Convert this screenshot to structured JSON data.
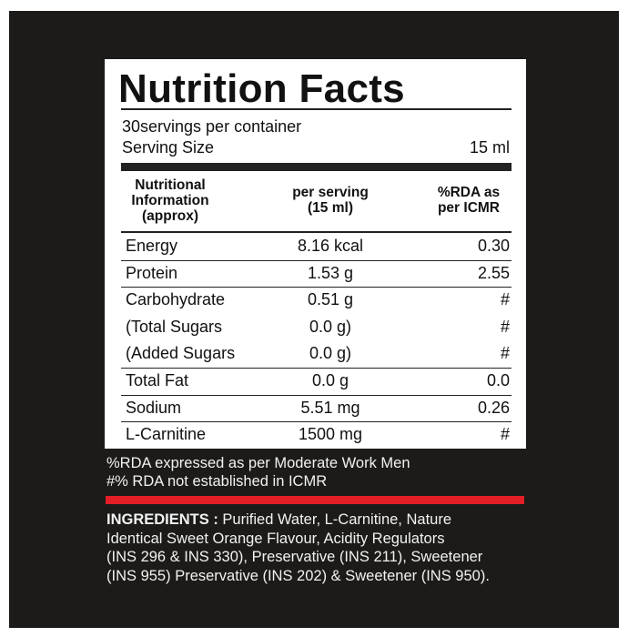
{
  "title": "Nutrition Facts",
  "servings_per_container": "30servings per container",
  "serving_size_label": "Serving Size",
  "serving_size_value": "15 ml",
  "header": {
    "col1": [
      "Nutritional",
      "Information",
      "(approx)"
    ],
    "col2": [
      "per serving",
      "(15 ml)"
    ],
    "col3": [
      "%RDA as",
      "per ICMR"
    ]
  },
  "rows": [
    {
      "name": "Energy",
      "per_serving": "8.16 kcal",
      "rda": "0.30"
    },
    {
      "name": "Protein",
      "per_serving": "1.53 g",
      "rda": "2.55"
    },
    {
      "name": "Carbohydrate",
      "per_serving": "0.51 g",
      "rda": "#"
    },
    {
      "name": "(Total Sugars",
      "per_serving": "0.0 g)",
      "rda": "#"
    },
    {
      "name": "(Added Sugars",
      "per_serving": "0.0 g)",
      "rda": "#"
    },
    {
      "name": "Total Fat",
      "per_serving": "0.0 g",
      "rda": "0.0"
    },
    {
      "name": "Sodium",
      "per_serving": "5.51 mg",
      "rda": "0.26"
    },
    {
      "name": "L-Carnitine",
      "per_serving": "1500 mg",
      "rda": "#"
    }
  ],
  "footnotes": [
    "%RDA expressed as per Moderate Work Men",
    "#% RDA not established in ICMR"
  ],
  "ingredients": {
    "label": "INGREDIENTS :",
    "lines": [
      " Purified Water, L-Carnitine, Nature",
      "Identical Sweet Orange Flavour, Acidity Regulators",
      "(INS 296 & INS 330), Preservative (INS 211), Sweetener",
      "(INS 955) Preservative (INS 202) & Sweetener (INS 950)."
    ]
  },
  "colors": {
    "background": "#1c1b19",
    "accent_bar": "#e31e26",
    "panel": "#ffffff"
  }
}
